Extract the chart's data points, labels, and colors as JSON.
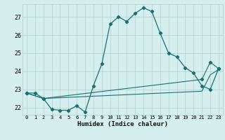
{
  "xlabel": "Humidex (Indice chaleur)",
  "bg_color": "#d5eeee",
  "grid_color": "#b0d0d0",
  "line_color": "#1a7070",
  "xlim": [
    -0.5,
    23.5
  ],
  "ylim": [
    21.6,
    27.7
  ],
  "xticks": [
    0,
    1,
    2,
    3,
    4,
    5,
    6,
    7,
    8,
    9,
    10,
    11,
    12,
    13,
    14,
    15,
    16,
    17,
    18,
    19,
    20,
    21,
    22,
    23
  ],
  "yticks": [
    22,
    23,
    24,
    25,
    26,
    27
  ],
  "series1_x": [
    0,
    1,
    2,
    3,
    4,
    5,
    6,
    7,
    8,
    9,
    10,
    11,
    12,
    13,
    14,
    15,
    16,
    17,
    18,
    19,
    20,
    21,
    22,
    23
  ],
  "series1_y": [
    22.8,
    22.8,
    22.5,
    21.9,
    21.85,
    21.85,
    22.1,
    21.75,
    23.2,
    24.4,
    26.6,
    27.0,
    26.75,
    27.2,
    27.5,
    27.3,
    26.1,
    25.0,
    24.8,
    24.2,
    23.9,
    23.2,
    23.0,
    24.15
  ],
  "series2_x": [
    0,
    2,
    21,
    22,
    23
  ],
  "series2_y": [
    22.8,
    22.5,
    22.9,
    23.8,
    24.1
  ],
  "series3_x": [
    0,
    2,
    21,
    22,
    23
  ],
  "series3_y": [
    22.8,
    22.5,
    23.55,
    24.5,
    24.15
  ]
}
